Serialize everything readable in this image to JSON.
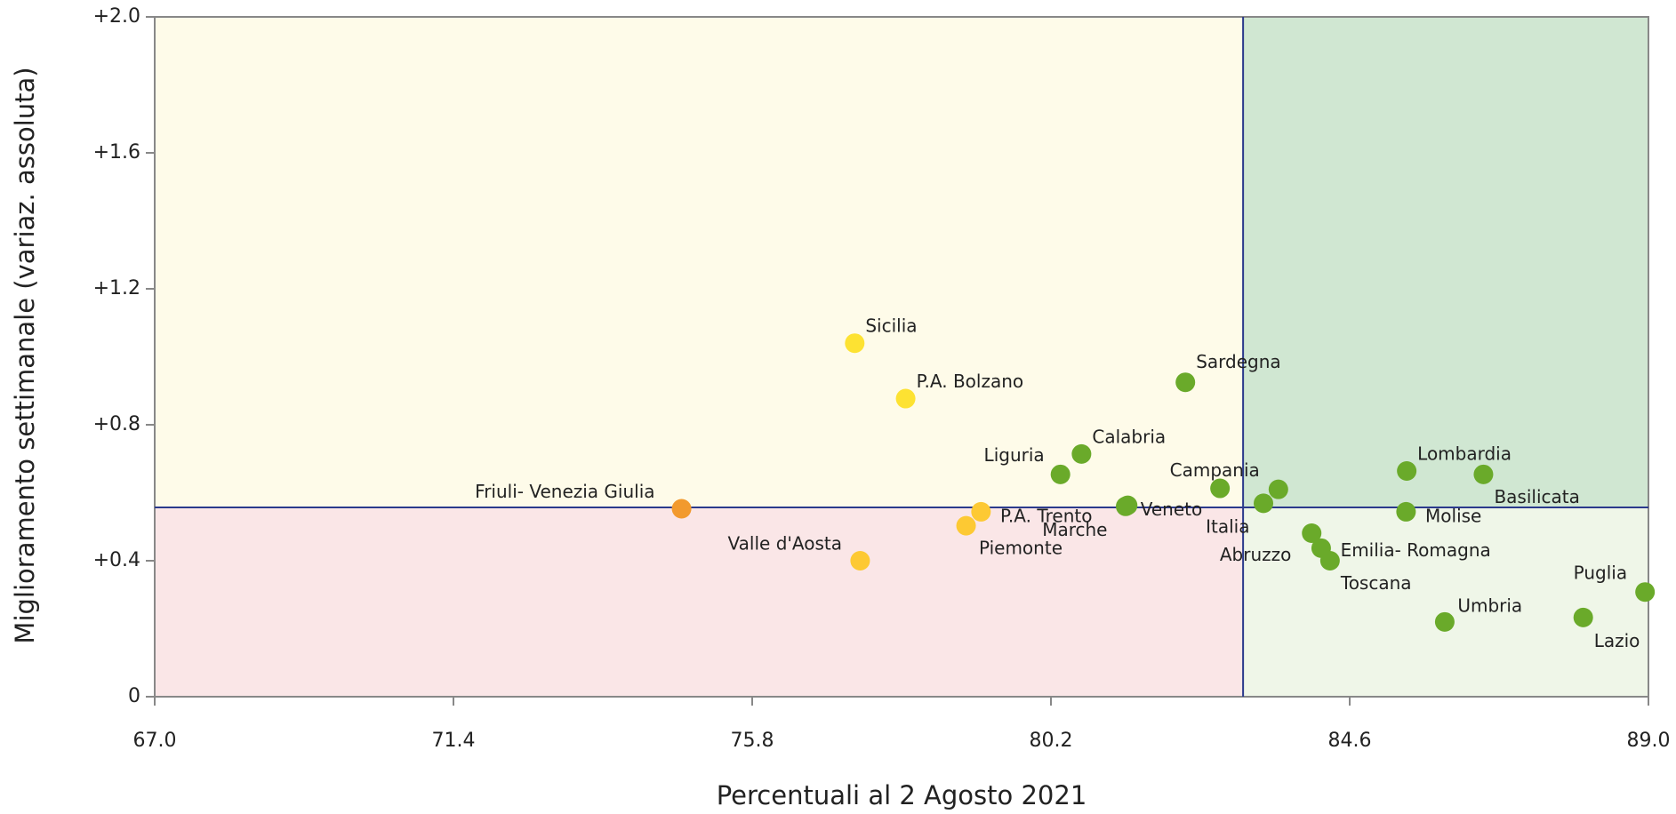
{
  "chart_data": {
    "type": "scatter",
    "xlabel": "Percentuali al 2 Agosto 2021",
    "ylabel": "Miglioramento settimanale (variaz. assoluta)",
    "xlim": [
      67,
      89
    ],
    "ylim": [
      0,
      2
    ],
    "xticks": [
      {
        "value": 67,
        "label": "67.0"
      },
      71.4,
      75.8,
      80.2,
      84.6,
      {
        "value": 89,
        "label": "89.0"
      }
    ],
    "yticks": [
      0,
      {
        "value": 0.4,
        "label": "+0.4"
      },
      {
        "value": 0.8,
        "label": "+0.8"
      },
      {
        "value": 1.2,
        "label": "+1.2"
      },
      {
        "value": 1.6,
        "label": "+1.6"
      },
      {
        "value": 2,
        "label": "+2.0"
      }
    ],
    "reference_x": 83.03,
    "reference_y": 0.557,
    "quadrant_colors": [
      "#fefbe9",
      "#d0e7d2",
      "#fae6e7",
      "#eff6e8"
    ],
    "labels": [
      "Sicilia",
      "P.A. Bolzano",
      "Sardegna",
      "Calabria",
      "Liguria",
      "Friuli- Venezia Giulia",
      "P.A. Trento",
      "Piemonte",
      "Valle d'Aosta",
      "Veneto",
      "Marche",
      "Campania",
      "Italia",
      null,
      "Abruzzo",
      "Emilia- Romagna",
      "Toscana",
      "Lombardia",
      "Basilicata",
      "Molise",
      "Umbria",
      "Lazio",
      "Puglia"
    ],
    "x": [
      77.31,
      78.06,
      82.18,
      80.65,
      80.34,
      74.76,
      79.17,
      78.95,
      77.39,
      81.33,
      81.3,
      82.69,
      83.33,
      83.55,
      84.04,
      84.18,
      84.31,
      85.44,
      86.57,
      85.43,
      86.0,
      88.04,
      88.95
    ],
    "values": [
      1.04,
      0.877,
      0.925,
      0.714,
      0.654,
      0.553,
      0.544,
      0.503,
      0.4,
      0.563,
      0.56,
      0.613,
      0.569,
      0.61,
      0.481,
      0.437,
      0.4,
      0.664,
      0.654,
      0.544,
      0.22,
      0.233,
      0.308
    ],
    "colors": [
      "#fde232",
      "#fde232",
      "#6aaa2a",
      "#6aaa2a",
      "#6aaa2a",
      "#f29a2e",
      "#fdc933",
      "#fdc933",
      "#fdc933",
      "#6aaa2a",
      "#6aaa2a",
      "#6aaa2a",
      "#6aaa2a",
      "#6aaa2a",
      "#6aaa2a",
      "#6aaa2a",
      "#6aaa2a",
      "#6aaa2a",
      "#6aaa2a",
      "#6aaa2a",
      "#6aaa2a",
      "#6aaa2a",
      "#6aaa2a"
    ]
  }
}
